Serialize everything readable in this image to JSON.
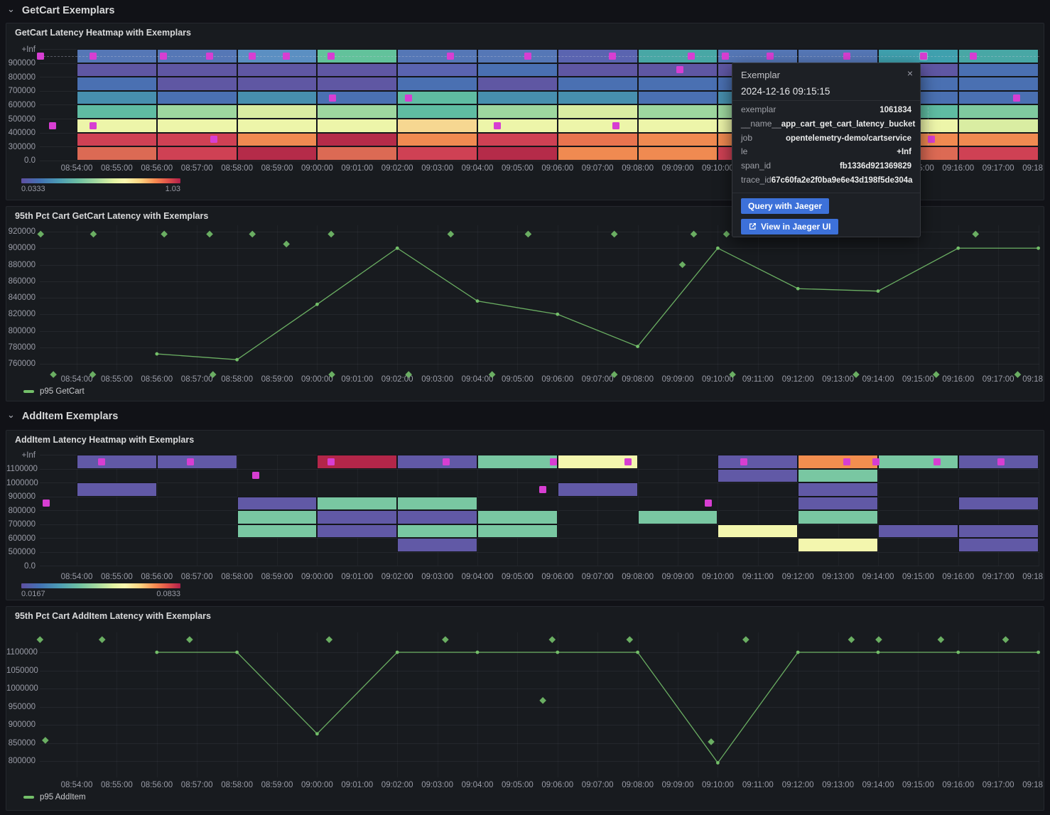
{
  "rows": [
    {
      "label": "GetCart Exemplars"
    },
    {
      "label": "AddItem Exemplars"
    }
  ],
  "colors": {
    "page_bg": "#111217",
    "panel_bg": "#181b1f",
    "panel_border": "#25282e",
    "text_primary": "#d8d9da",
    "text_secondary": "#9a9ca7",
    "series_green": "#73bf69",
    "exemplar_magenta": "#d73ed2",
    "button_blue": "#3d71d9",
    "heatmap_palette": {
      "B2": "#5577b6",
      "P": "#5f57a3",
      "PB": "#5a64b0",
      "B": "#4a70b2",
      "B3": "#5b8fc2",
      "TB": "#478fae",
      "T": "#48a7a5",
      "T2": "#3fa0ae",
      "TG": "#5fbca2",
      "TG2": "#62c29b",
      "G": "#7fca9f",
      "LG": "#9ed79f",
      "YG": "#d9eda2",
      "Y": "#edf5a9",
      "CY": "#f6d791",
      "O": "#f08a51",
      "RO": "#e8744f",
      "R": "#cf4154",
      "SA": "#dc6a54",
      "CR": "#b52b49",
      "P2": "#6159a6",
      "G2": "#79c7a2",
      "PY": "#f3f6ae",
      "OR": "#f28e4f",
      "CR2": "#b32649"
    }
  },
  "time_axis": {
    "ticks": [
      "08:54:00",
      "08:55:00",
      "08:56:00",
      "08:57:00",
      "08:58:00",
      "08:59:00",
      "09:00:00",
      "09:01:00",
      "09:02:00",
      "09:03:00",
      "09:04:00",
      "09:05:00",
      "09:06:00",
      "09:07:00",
      "09:08:00",
      "09:09:00",
      "09:10:00",
      "09:11:00",
      "09:12:00",
      "09:13:00",
      "09:14:00",
      "09:15:00",
      "09:16:00",
      "09:17:00",
      "09:18:00"
    ]
  },
  "tooltip": {
    "title": "Exemplar",
    "timestamp": "2024-12-16 09:15:15",
    "close_icon": "×",
    "fields": [
      {
        "label": "exemplar",
        "value": "1061834"
      },
      {
        "label": "__name__",
        "value": "app_cart_get_cart_latency_bucket"
      },
      {
        "label": "job",
        "value": "opentelemetry-demo/cartservice"
      },
      {
        "label": "le",
        "value": "+Inf"
      },
      {
        "label": "span_id",
        "value": "fb1336d921369829"
      },
      {
        "label": "trace_id",
        "value": "67c60fa2e2f0ba9e6e43d198f5de304a"
      }
    ],
    "buttons": [
      {
        "label": "Query with Jaeger"
      },
      {
        "label": "View in Jaeger UI",
        "icon": "external-link"
      }
    ]
  },
  "chart_data": [
    {
      "type": "heatmap",
      "title": "GetCart Latency Heatmap with Exemplars",
      "y_ticks": [
        "+Inf",
        "900000",
        "800000",
        "700000",
        "600000",
        "500000",
        "400000",
        "300000",
        "0.0"
      ],
      "bucket_width_minutes": 2,
      "columns": [
        {
          "start": "08:54:00",
          "cells": [
            "B2",
            "P",
            "B",
            "TB",
            "TG",
            "Y",
            "R",
            "SA"
          ]
        },
        {
          "start": "08:56:00",
          "cells": [
            "B2",
            "P",
            "P",
            "B",
            "LG",
            "Y",
            "R",
            "R"
          ]
        },
        {
          "start": "08:58:00",
          "cells": [
            "B3",
            "P",
            "P",
            "TB",
            "YG",
            "Y",
            "O",
            "CR"
          ]
        },
        {
          "start": "09:00:00",
          "cells": [
            "TG2",
            "P",
            "P",
            "B",
            "LG",
            "Y",
            "CR",
            "SA"
          ]
        },
        {
          "start": "09:02:00",
          "cells": [
            "B2",
            "PB",
            "B",
            "TG",
            "TG",
            "CY",
            "O",
            "R"
          ]
        },
        {
          "start": "09:04:00",
          "cells": [
            "B2",
            "B",
            "P",
            "TB",
            "LG",
            "Y",
            "R",
            "CR"
          ]
        },
        {
          "start": "09:06:00",
          "cells": [
            "PB",
            "P",
            "B",
            "TB",
            "YG",
            "Y",
            "RO",
            "O"
          ]
        },
        {
          "start": "09:08:00",
          "cells": [
            "T",
            "P",
            "B",
            "B",
            "LG",
            "Y",
            "O",
            "O"
          ]
        },
        {
          "start": "09:10:00",
          "cells": [
            "B2",
            "P",
            "B",
            "TB",
            "LG",
            "Y",
            "O",
            "R"
          ]
        },
        {
          "start": "09:12:00",
          "cells": [
            "B2",
            "P",
            "B",
            "B",
            "LG",
            "Y",
            "O",
            "R"
          ]
        },
        {
          "start": "09:14:00",
          "cells": [
            "T2",
            "P",
            "B",
            "B",
            "TG",
            "Y",
            "O",
            "SA"
          ]
        },
        {
          "start": "09:16:00",
          "cells": [
            "T",
            "B",
            "B",
            "B",
            "G",
            "YG",
            "O",
            "R"
          ]
        }
      ],
      "exemplars": [
        {
          "t": "08:53:06",
          "row": 1
        },
        {
          "t": "08:54:24",
          "row": 1
        },
        {
          "t": "08:56:10",
          "row": 1
        },
        {
          "t": "08:57:19",
          "row": 1
        },
        {
          "t": "08:58:23",
          "row": 1
        },
        {
          "t": "08:59:14",
          "row": 1
        },
        {
          "t": "09:00:21",
          "row": 1
        },
        {
          "t": "09:03:20",
          "row": 1
        },
        {
          "t": "09:05:15",
          "row": 1
        },
        {
          "t": "09:07:22",
          "row": 1
        },
        {
          "t": "09:09:20",
          "row": 1
        },
        {
          "t": "09:10:11",
          "row": 1
        },
        {
          "t": "09:11:18",
          "row": 1
        },
        {
          "t": "09:13:13",
          "row": 1
        },
        {
          "t": "09:15:08",
          "row": 1,
          "selected": true
        },
        {
          "t": "09:16:23",
          "row": 1
        },
        {
          "t": "09:09:03",
          "row": 2
        },
        {
          "t": "09:00:23",
          "row": 4
        },
        {
          "t": "09:02:17",
          "row": 4
        },
        {
          "t": "09:17:27",
          "row": 4
        },
        {
          "t": "08:53:24",
          "row": 6
        },
        {
          "t": "08:54:24",
          "row": 6
        },
        {
          "t": "09:04:30",
          "row": 6
        },
        {
          "t": "09:07:27",
          "row": 6
        },
        {
          "t": "08:57:25",
          "row": 7
        },
        {
          "t": "09:15:20",
          "row": 7
        }
      ],
      "legend": {
        "min": "0.0333",
        "max": "1.03"
      }
    },
    {
      "type": "line",
      "title": "95th Pct Cart GetCart Latency with Exemplars",
      "y_ticks": [
        920000,
        900000,
        880000,
        860000,
        840000,
        820000,
        800000,
        780000,
        760000
      ],
      "series": [
        {
          "name": "p95 GetCart",
          "color": "#73bf69",
          "x": [
            "08:56:00",
            "08:58:00",
            "09:00:00",
            "09:02:00",
            "09:04:00",
            "09:06:00",
            "09:08:00",
            "09:10:00",
            "09:12:00",
            "09:14:00",
            "09:16:00",
            "09:18:00"
          ],
          "values": [
            772000,
            765000,
            832000,
            900000,
            836000,
            820000,
            781000,
            900000,
            851000,
            848000,
            900000,
            900000
          ]
        }
      ],
      "exemplars": [
        {
          "t": "08:53:06",
          "v": 917000
        },
        {
          "t": "08:54:25",
          "v": 917000
        },
        {
          "t": "08:56:11",
          "v": 917000
        },
        {
          "t": "08:57:19",
          "v": 917000
        },
        {
          "t": "08:58:23",
          "v": 917000
        },
        {
          "t": "09:00:21",
          "v": 917000
        },
        {
          "t": "09:03:20",
          "v": 917000
        },
        {
          "t": "09:05:16",
          "v": 917000
        },
        {
          "t": "09:07:25",
          "v": 917000
        },
        {
          "t": "09:09:24",
          "v": 917000
        },
        {
          "t": "09:10:13",
          "v": 917000
        },
        {
          "t": "09:16:26",
          "v": 917000
        },
        {
          "t": "08:59:14",
          "v": 905000
        },
        {
          "t": "09:09:07",
          "v": 880000
        },
        {
          "t": "08:53:25",
          "v": 747000
        },
        {
          "t": "08:54:24",
          "v": 747000
        },
        {
          "t": "08:57:24",
          "v": 747000
        },
        {
          "t": "09:00:22",
          "v": 747000
        },
        {
          "t": "09:02:17",
          "v": 747000
        },
        {
          "t": "09:04:22",
          "v": 747000
        },
        {
          "t": "09:07:25",
          "v": 747000
        },
        {
          "t": "09:10:22",
          "v": 747000
        },
        {
          "t": "09:13:27",
          "v": 747000
        },
        {
          "t": "09:15:27",
          "v": 747000
        },
        {
          "t": "09:17:29",
          "v": 747000
        }
      ]
    },
    {
      "type": "heatmap",
      "title": "AddItem Latency Heatmap with Exemplars",
      "y_ticks": [
        "+Inf",
        "1100000",
        "1000000",
        "900000",
        "800000",
        "700000",
        "600000",
        "500000",
        "0.0"
      ],
      "bucket_width_minutes": 2,
      "columns": [
        {
          "start": "08:54:00",
          "cells": [
            "P2",
            null,
            "P2",
            null,
            null,
            null,
            null,
            null
          ]
        },
        {
          "start": "08:56:00",
          "cells": [
            "P2",
            null,
            null,
            null,
            null,
            null,
            null,
            null
          ]
        },
        {
          "start": "08:58:00",
          "cells": [
            null,
            null,
            null,
            "P2",
            "G2",
            "G2",
            null,
            null
          ]
        },
        {
          "start": "09:00:00",
          "cells": [
            "CR2",
            null,
            null,
            "G2",
            "P2",
            "P2",
            null,
            null
          ]
        },
        {
          "start": "09:02:00",
          "cells": [
            "P2",
            null,
            null,
            "G2",
            "P2",
            "G2",
            "P2",
            null
          ]
        },
        {
          "start": "09:04:00",
          "cells": [
            "G2",
            null,
            null,
            null,
            "G2",
            "G2",
            null,
            null
          ]
        },
        {
          "start": "09:06:00",
          "cells": [
            "PY",
            null,
            "P2",
            null,
            null,
            null,
            null,
            null
          ]
        },
        {
          "start": "09:08:00",
          "cells": [
            null,
            null,
            null,
            null,
            "G2",
            null,
            null,
            null
          ]
        },
        {
          "start": "09:10:00",
          "cells": [
            "P2",
            "P2",
            null,
            null,
            null,
            "PY",
            null,
            null
          ]
        },
        {
          "start": "09:12:00",
          "cells": [
            "OR",
            "G2",
            "P2",
            "P2",
            "G2",
            null,
            "PY",
            null
          ]
        },
        {
          "start": "09:14:00",
          "cells": [
            "G2",
            null,
            null,
            null,
            null,
            "P2",
            null,
            null
          ]
        },
        {
          "start": "09:16:00",
          "cells": [
            "P2",
            null,
            null,
            "P2",
            null,
            "P2",
            "P2",
            null
          ]
        }
      ],
      "exemplars": [
        {
          "t": "08:53:14",
          "row": 4
        },
        {
          "t": "08:54:37",
          "row": 1
        },
        {
          "t": "08:56:50",
          "row": 1
        },
        {
          "t": "08:58:28",
          "row": 2
        },
        {
          "t": "09:00:21",
          "row": 1
        },
        {
          "t": "09:03:13",
          "row": 1
        },
        {
          "t": "09:05:38",
          "row": 3
        },
        {
          "t": "09:05:54",
          "row": 1
        },
        {
          "t": "09:07:46",
          "row": 1
        },
        {
          "t": "09:09:46",
          "row": 4
        },
        {
          "t": "09:10:39",
          "row": 1
        },
        {
          "t": "09:13:13",
          "row": 1
        },
        {
          "t": "09:13:57",
          "row": 1
        },
        {
          "t": "09:15:28",
          "row": 1
        },
        {
          "t": "09:17:04",
          "row": 1
        }
      ],
      "legend": {
        "min": "0.0167",
        "max": "0.0833"
      }
    },
    {
      "type": "line",
      "title": "95th Pct Cart AddItem Latency with Exemplars",
      "y_ticks": [
        1100000,
        1050000,
        1000000,
        950000,
        900000,
        850000,
        800000
      ],
      "series": [
        {
          "name": "p95 AddItem",
          "color": "#73bf69",
          "x": [
            "08:56:00",
            "08:58:00",
            "09:00:00",
            "09:02:00",
            "09:04:00",
            "09:06:00",
            "09:08:00",
            "09:10:00",
            "09:12:00",
            "09:14:00",
            "09:16:00",
            "09:18:00"
          ],
          "values": [
            1100000,
            1100000,
            875000,
            1100000,
            1100000,
            1100000,
            1100000,
            795000,
            1100000,
            1100000,
            1100000,
            1100000
          ]
        }
      ],
      "exemplars": [
        {
          "t": "08:53:05",
          "v": 1135000
        },
        {
          "t": "08:54:38",
          "v": 1135000
        },
        {
          "t": "08:56:49",
          "v": 1135000
        },
        {
          "t": "09:00:18",
          "v": 1135000
        },
        {
          "t": "09:03:12",
          "v": 1135000
        },
        {
          "t": "09:05:52",
          "v": 1135000
        },
        {
          "t": "09:07:48",
          "v": 1135000
        },
        {
          "t": "09:10:42",
          "v": 1135000
        },
        {
          "t": "09:13:20",
          "v": 1135000
        },
        {
          "t": "09:14:01",
          "v": 1135000
        },
        {
          "t": "09:15:34",
          "v": 1135000
        },
        {
          "t": "09:17:11",
          "v": 1135000
        },
        {
          "t": "08:53:13",
          "v": 857000
        },
        {
          "t": "09:05:38",
          "v": 967000
        },
        {
          "t": "09:09:50",
          "v": 853000
        }
      ]
    }
  ]
}
